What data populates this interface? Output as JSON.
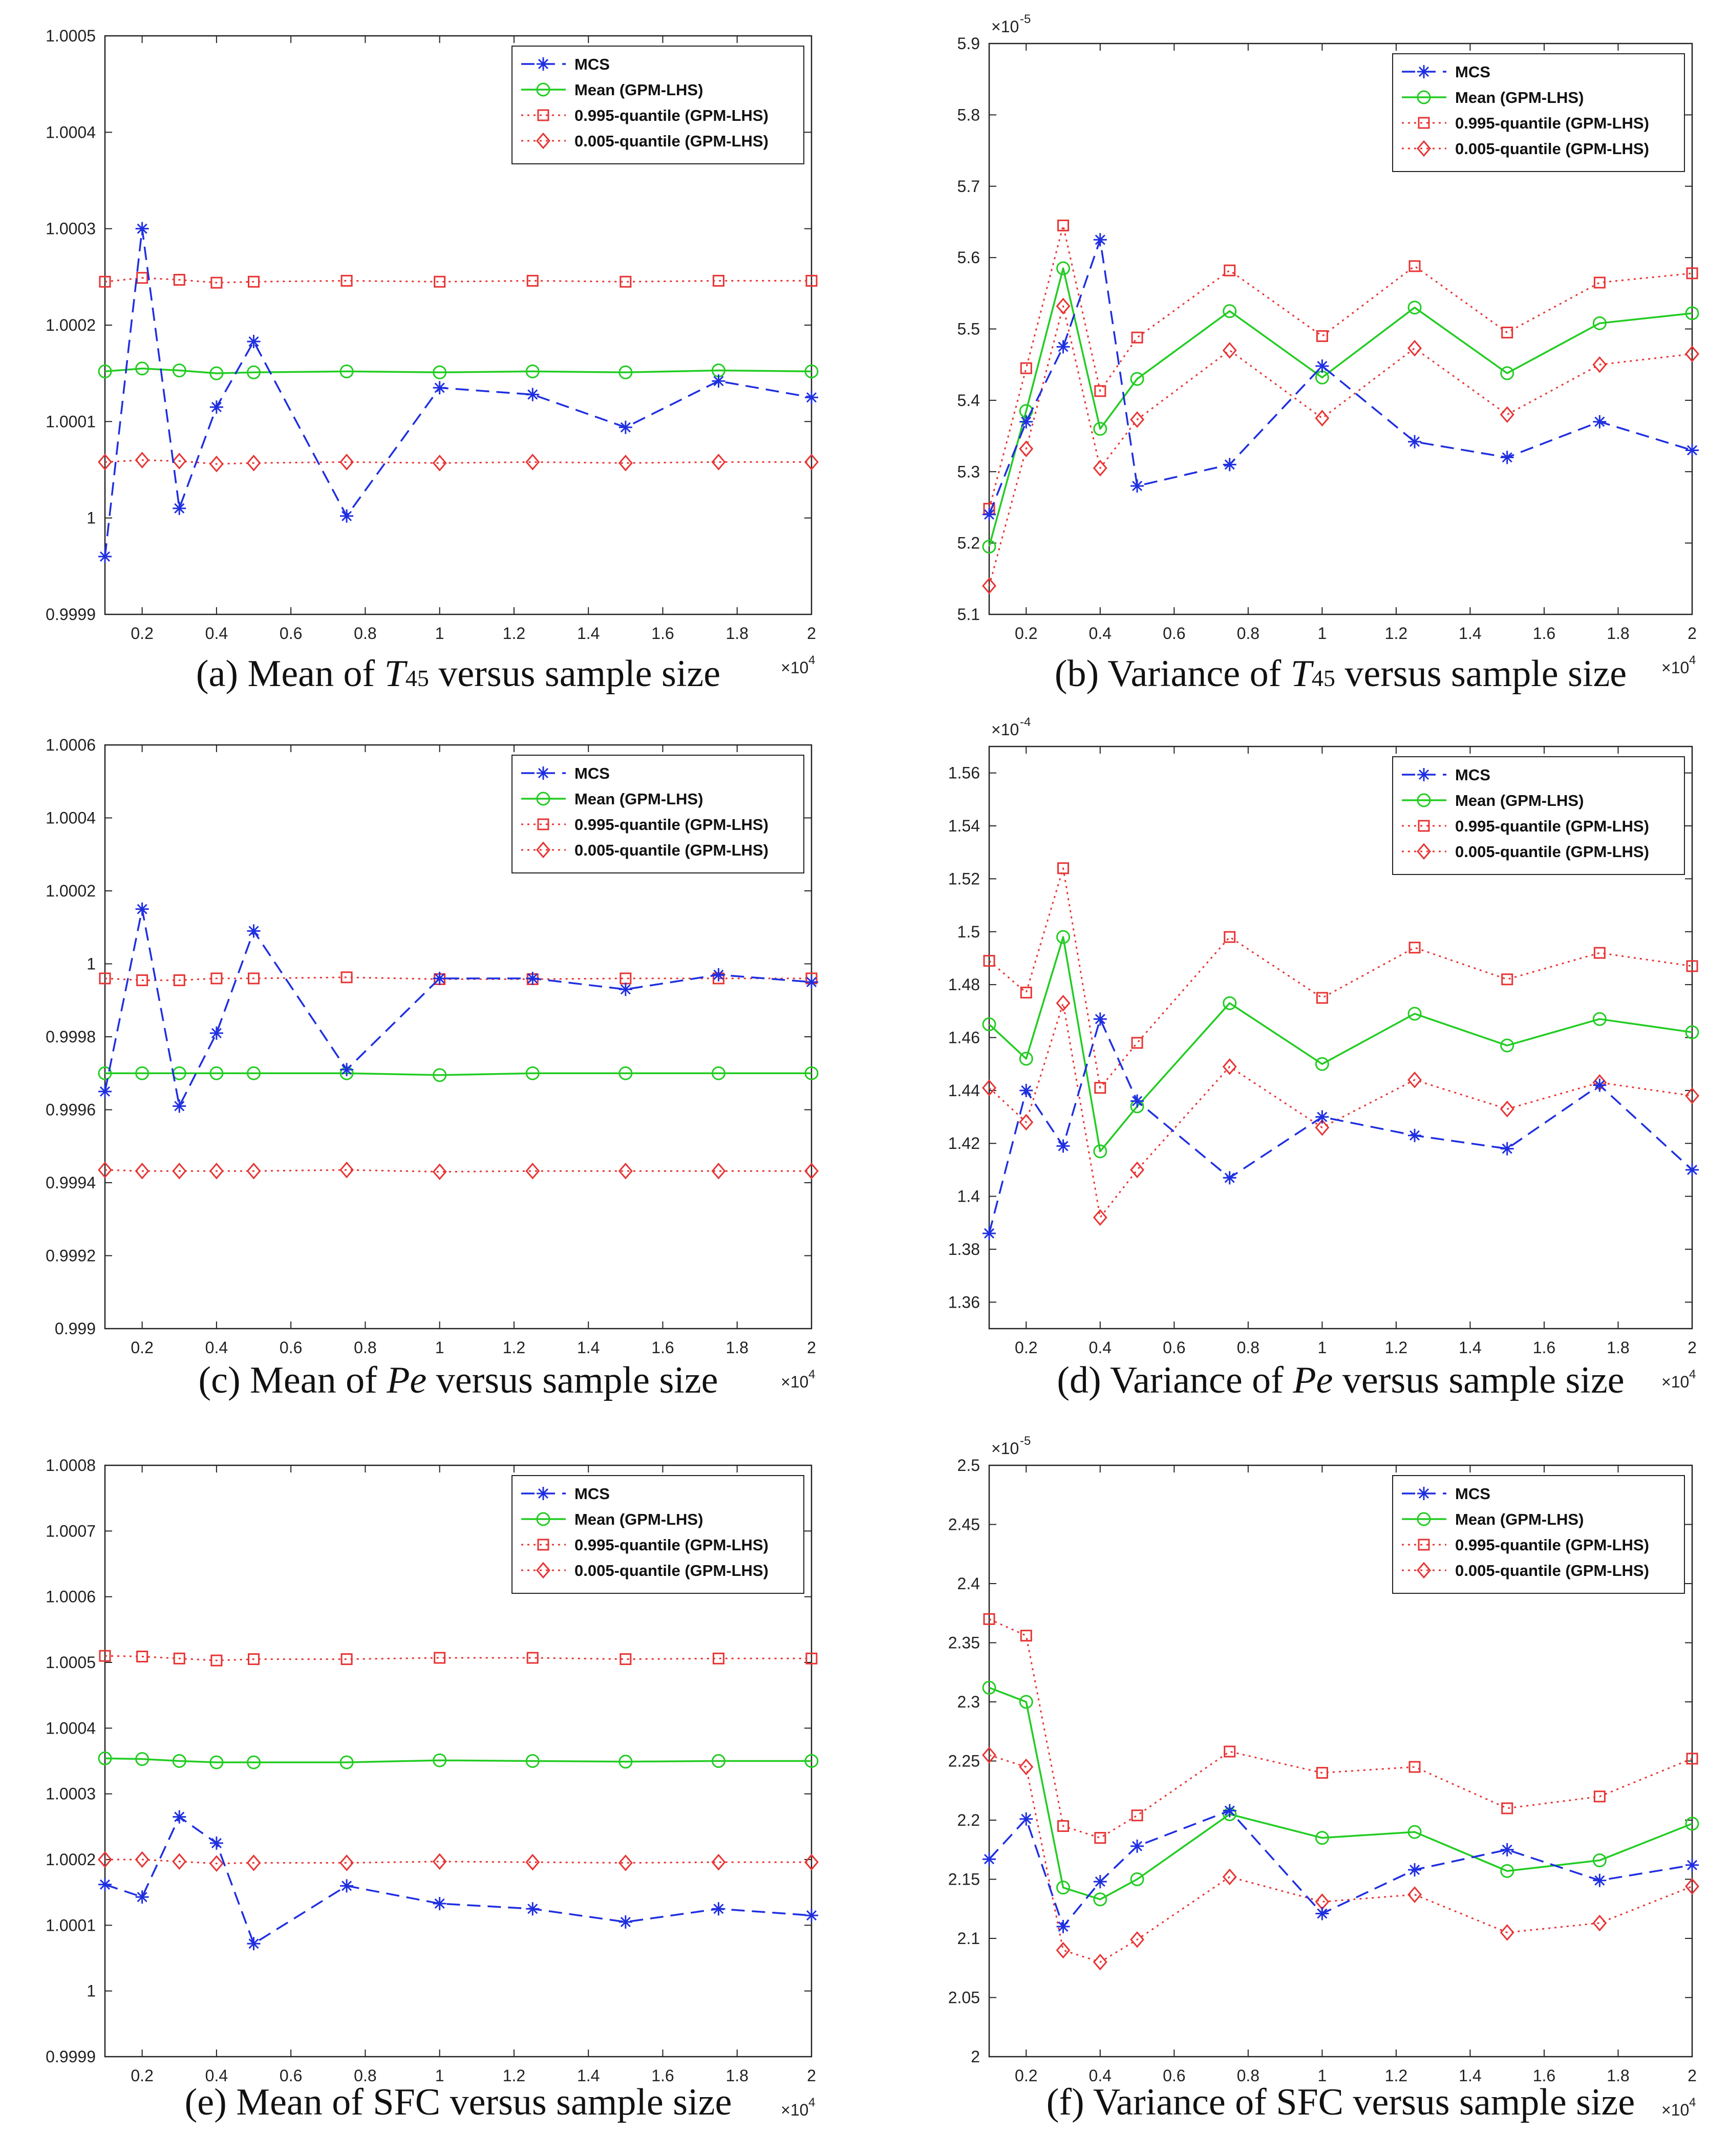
{
  "colors": {
    "mcs": "#1f2fe0",
    "mean": "#22cc22",
    "q995": "#e83333",
    "q005": "#e83333",
    "axis": "#222222",
    "grid_bg": "#ffffff"
  },
  "chart_data": [
    {
      "id": "a",
      "type": "line",
      "caption_prefix": "(a) Mean of ",
      "caption_sym": "T",
      "caption_sub": "45",
      "caption_suffix": " versus sample size",
      "x": [
        1000,
        2000,
        3000,
        4000,
        5000,
        7500,
        10000,
        12500,
        15000,
        17500,
        20000
      ],
      "xlim": [
        1000,
        20000
      ],
      "xticks": [
        "0.2",
        "0.4",
        "0.6",
        "0.8",
        "1",
        "1.2",
        "1.4",
        "1.6",
        "1.8",
        "2"
      ],
      "xexp": "4",
      "ylim": [
        0.9999,
        1.0005
      ],
      "yticks": [
        "0.9999",
        "1",
        "1.0001",
        "1.0002",
        "1.0003",
        "1.0004",
        "1.0005"
      ],
      "yexp": "",
      "series": [
        {
          "name": "MCS",
          "values": [
            0.99996,
            1.0003,
            1.00001,
            1.000115,
            1.000183,
            1.000002,
            1.000135,
            1.000128,
            1.000094,
            1.000142,
            1.000125
          ]
        },
        {
          "name": "Mean (GPM-LHS)",
          "values": [
            1.000152,
            1.000155,
            1.000153,
            1.00015,
            1.000151,
            1.000152,
            1.000151,
            1.000152,
            1.000151,
            1.000153,
            1.000152
          ]
        },
        {
          "name": "0.995-quantile (GPM-LHS)",
          "values": [
            1.000245,
            1.000249,
            1.000247,
            1.000244,
            1.000245,
            1.000246,
            1.000245,
            1.000246,
            1.000245,
            1.000246,
            1.000246
          ]
        },
        {
          "name": "0.005-quantile (GPM-LHS)",
          "values": [
            1.000058,
            1.00006,
            1.000059,
            1.000056,
            1.000057,
            1.000058,
            1.000057,
            1.000058,
            1.000057,
            1.000058,
            1.000058
          ]
        }
      ]
    },
    {
      "id": "b",
      "type": "line",
      "caption_prefix": "(b) Variance of ",
      "caption_sym": "T",
      "caption_sub": "45",
      "caption_suffix": " versus sample size",
      "x": [
        1000,
        2000,
        3000,
        4000,
        5000,
        7500,
        10000,
        12500,
        15000,
        17500,
        20000
      ],
      "xlim": [
        1000,
        20000
      ],
      "xticks": [
        "0.2",
        "0.4",
        "0.6",
        "0.8",
        "1",
        "1.2",
        "1.4",
        "1.6",
        "1.8",
        "2"
      ],
      "xexp": "4",
      "ylim": [
        5.1,
        5.9
      ],
      "yticks": [
        "5.1",
        "5.2",
        "5.3",
        "5.4",
        "5.5",
        "5.6",
        "5.7",
        "5.8",
        "5.9"
      ],
      "yexp": "-5",
      "series": [
        {
          "name": "MCS",
          "values": [
            5.24,
            5.37,
            5.475,
            5.625,
            5.28,
            5.31,
            5.448,
            5.342,
            5.32,
            5.37,
            5.33
          ]
        },
        {
          "name": "Mean (GPM-LHS)",
          "values": [
            5.195,
            5.385,
            5.585,
            5.36,
            5.43,
            5.525,
            5.432,
            5.53,
            5.438,
            5.508,
            5.522
          ]
        },
        {
          "name": "0.995-quantile (GPM-LHS)",
          "values": [
            5.248,
            5.445,
            5.645,
            5.413,
            5.488,
            5.582,
            5.49,
            5.588,
            5.495,
            5.565,
            5.578
          ]
        },
        {
          "name": "0.005-quantile (GPM-LHS)",
          "values": [
            5.14,
            5.332,
            5.532,
            5.305,
            5.373,
            5.47,
            5.375,
            5.473,
            5.38,
            5.45,
            5.465
          ]
        }
      ]
    },
    {
      "id": "c",
      "type": "line",
      "caption_prefix": "(c) Mean of ",
      "caption_sym": "Pe",
      "caption_sub": "",
      "caption_suffix": " versus sample size",
      "x": [
        1000,
        2000,
        3000,
        4000,
        5000,
        7500,
        10000,
        12500,
        15000,
        17500,
        20000
      ],
      "xlim": [
        1000,
        20000
      ],
      "xticks": [
        "0.2",
        "0.4",
        "0.6",
        "0.8",
        "1",
        "1.2",
        "1.4",
        "1.6",
        "1.8",
        "2"
      ],
      "xexp": "4",
      "ylim": [
        0.999,
        1.0006
      ],
      "yticks": [
        "0.999",
        "0.9992",
        "0.9994",
        "0.9996",
        "0.9998",
        "1",
        "1.0002",
        "1.0004",
        "1.0006"
      ],
      "yexp": "",
      "series": [
        {
          "name": "MCS",
          "values": [
            0.99965,
            1.00015,
            0.99961,
            0.99981,
            1.00009,
            0.99971,
            0.99996,
            0.99996,
            0.99993,
            0.99997,
            0.99995
          ]
        },
        {
          "name": "Mean (GPM-LHS)",
          "values": [
            0.9997,
            0.9997,
            0.9997,
            0.9997,
            0.9997,
            0.9997,
            0.999695,
            0.9997,
            0.9997,
            0.9997,
            0.9997
          ]
        },
        {
          "name": "0.995-quantile (GPM-LHS)",
          "values": [
            0.99996,
            0.999955,
            0.999955,
            0.99996,
            0.99996,
            0.999963,
            0.999958,
            0.999958,
            0.99996,
            0.99996,
            0.99996
          ]
        },
        {
          "name": "0.005-quantile (GPM-LHS)",
          "values": [
            0.999435,
            0.999432,
            0.999432,
            0.999432,
            0.999432,
            0.999435,
            0.99943,
            0.999432,
            0.999432,
            0.999432,
            0.999432
          ]
        }
      ]
    },
    {
      "id": "d",
      "type": "line",
      "caption_prefix": "(d) Variance of ",
      "caption_sym": "Pe",
      "caption_sub": "",
      "caption_suffix": " versus sample size",
      "x": [
        1000,
        2000,
        3000,
        4000,
        5000,
        7500,
        10000,
        12500,
        15000,
        17500,
        20000
      ],
      "xlim": [
        1000,
        20000
      ],
      "xticks": [
        "0.2",
        "0.4",
        "0.6",
        "0.8",
        "1",
        "1.2",
        "1.4",
        "1.6",
        "1.8",
        "2"
      ],
      "xexp": "4",
      "ylim": [
        1.35,
        1.57
      ],
      "yticks": [
        "1.36",
        "1.38",
        "1.4",
        "1.42",
        "1.44",
        "1.46",
        "1.48",
        "1.5",
        "1.52",
        "1.54",
        "1.56"
      ],
      "yexp": "-4",
      "series": [
        {
          "name": "MCS",
          "values": [
            1.386,
            1.44,
            1.419,
            1.467,
            1.436,
            1.407,
            1.43,
            1.423,
            1.418,
            1.442,
            1.41
          ]
        },
        {
          "name": "Mean (GPM-LHS)",
          "values": [
            1.465,
            1.452,
            1.498,
            1.417,
            1.434,
            1.473,
            1.45,
            1.469,
            1.457,
            1.467,
            1.462
          ]
        },
        {
          "name": "0.995-quantile (GPM-LHS)",
          "values": [
            1.489,
            1.477,
            1.524,
            1.441,
            1.458,
            1.498,
            1.475,
            1.494,
            1.482,
            1.492,
            1.487
          ]
        },
        {
          "name": "0.005-quantile (GPM-LHS)",
          "values": [
            1.441,
            1.428,
            1.473,
            1.392,
            1.41,
            1.449,
            1.426,
            1.444,
            1.433,
            1.443,
            1.438
          ]
        }
      ]
    },
    {
      "id": "e",
      "type": "line",
      "caption_prefix": "(e) Mean of SFC versus sample size",
      "caption_sym": "",
      "caption_sub": "",
      "caption_suffix": "",
      "x": [
        1000,
        2000,
        3000,
        4000,
        5000,
        7500,
        10000,
        12500,
        15000,
        17500,
        20000
      ],
      "xlim": [
        1000,
        20000
      ],
      "xticks": [
        "0.2",
        "0.4",
        "0.6",
        "0.8",
        "1",
        "1.2",
        "1.4",
        "1.6",
        "1.8",
        "2"
      ],
      "xexp": "4",
      "ylim": [
        0.9999,
        1.0008
      ],
      "yticks": [
        "0.9999",
        "1",
        "1.0001",
        "1.0002",
        "1.0003",
        "1.0004",
        "1.0005",
        "1.0006",
        "1.0007",
        "1.0008"
      ],
      "yexp": "",
      "series": [
        {
          "name": "MCS",
          "values": [
            1.000162,
            1.000143,
            1.000265,
            1.000225,
            1.000072,
            1.00016,
            1.000133,
            1.000125,
            1.000105,
            1.000125,
            1.000115
          ]
        },
        {
          "name": "Mean (GPM-LHS)",
          "values": [
            1.000354,
            1.000353,
            1.00035,
            1.000348,
            1.000348,
            1.000348,
            1.000351,
            1.00035,
            1.000349,
            1.00035,
            1.00035
          ]
        },
        {
          "name": "0.995-quantile (GPM-LHS)",
          "values": [
            1.00051,
            1.000509,
            1.000506,
            1.000503,
            1.000505,
            1.000505,
            1.000507,
            1.000507,
            1.000505,
            1.000506,
            1.000506
          ]
        },
        {
          "name": "0.005-quantile (GPM-LHS)",
          "values": [
            1.0002,
            1.0002,
            1.000197,
            1.000194,
            1.000195,
            1.000195,
            1.000197,
            1.000196,
            1.000195,
            1.000196,
            1.000196
          ]
        }
      ]
    },
    {
      "id": "f",
      "type": "line",
      "caption_prefix": "(f) Variance of SFC versus sample size",
      "caption_sym": "",
      "caption_sub": "",
      "caption_suffix": "",
      "x": [
        1000,
        2000,
        3000,
        4000,
        5000,
        7500,
        10000,
        12500,
        15000,
        17500,
        20000
      ],
      "xlim": [
        1000,
        20000
      ],
      "xticks": [
        "0.2",
        "0.4",
        "0.6",
        "0.8",
        "1",
        "1.2",
        "1.4",
        "1.6",
        "1.8",
        "2"
      ],
      "xexp": "4",
      "ylim": [
        2.0,
        2.5
      ],
      "yticks": [
        "2",
        "2.05",
        "2.1",
        "2.15",
        "2.2",
        "2.25",
        "2.3",
        "2.35",
        "2.4",
        "2.45",
        "2.5"
      ],
      "yexp": "-5",
      "series": [
        {
          "name": "MCS",
          "values": [
            2.167,
            2.201,
            2.11,
            2.148,
            2.178,
            2.208,
            2.121,
            2.158,
            2.175,
            2.149,
            2.162
          ]
        },
        {
          "name": "Mean (GPM-LHS)",
          "values": [
            2.312,
            2.3,
            2.143,
            2.133,
            2.15,
            2.205,
            2.185,
            2.19,
            2.157,
            2.166,
            2.197
          ]
        },
        {
          "name": "0.995-quantile (GPM-LHS)",
          "values": [
            2.37,
            2.356,
            2.195,
            2.185,
            2.204,
            2.258,
            2.24,
            2.245,
            2.21,
            2.22,
            2.252
          ]
        },
        {
          "name": "0.005-quantile (GPM-LHS)",
          "values": [
            2.255,
            2.245,
            2.09,
            2.08,
            2.099,
            2.152,
            2.131,
            2.137,
            2.105,
            2.113,
            2.144
          ]
        }
      ]
    }
  ]
}
